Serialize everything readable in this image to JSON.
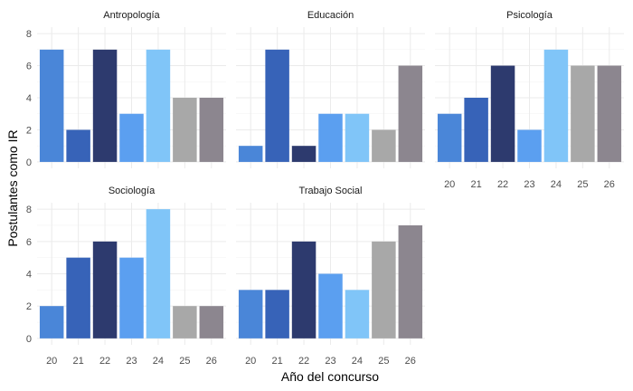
{
  "chart_data": {
    "type": "bar",
    "layout": "facet_wrap",
    "ncol": 3,
    "xlabel": "Año del concurso",
    "ylabel": "Postulantes como IR",
    "ylim": [
      0,
      8
    ],
    "yticks": [
      0,
      2,
      4,
      6,
      8
    ],
    "categories": [
      "20",
      "21",
      "22",
      "23",
      "24",
      "25",
      "26"
    ],
    "colors": [
      "#4a86d8",
      "#3763b8",
      "#2d3a6e",
      "#5b9ff0",
      "#80c5f8",
      "#a8a8a8",
      "#8c868f"
    ],
    "grid": true,
    "panels": [
      {
        "name": "Antropología",
        "values": [
          7,
          2,
          7,
          3,
          7,
          4,
          4
        ]
      },
      {
        "name": "Educación",
        "values": [
          1,
          7,
          1,
          3,
          3,
          2,
          6
        ]
      },
      {
        "name": "Psicología",
        "values": [
          3,
          4,
          6,
          2,
          7,
          6,
          6
        ]
      },
      {
        "name": "Sociología",
        "values": [
          2,
          5,
          6,
          5,
          8,
          2,
          2
        ]
      },
      {
        "name": "Trabajo Social",
        "values": [
          3,
          3,
          6,
          4,
          3,
          6,
          7
        ]
      }
    ]
  }
}
